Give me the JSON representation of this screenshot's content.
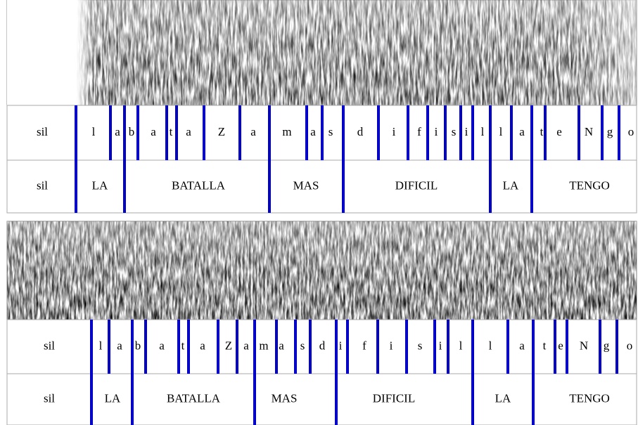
{
  "panels": [
    {
      "phonemes": [
        "sil",
        "l",
        "a",
        "b",
        "a",
        "t",
        "a",
        "Z",
        "a",
        "m",
        "a",
        "s",
        "d",
        "i",
        "f",
        "i",
        "s",
        "i",
        "l",
        "l",
        "a",
        "t",
        "e",
        "N",
        "g",
        "o"
      ],
      "words": [
        "sil",
        "LA",
        "BATALLA",
        "MAS",
        "DIFICIL",
        "LA",
        "TENGO"
      ]
    },
    {
      "phonemes": [
        "sil",
        "l",
        "a",
        "b",
        "a",
        "t",
        "a",
        "Z",
        "a",
        "m",
        "a",
        "s",
        "d",
        "i",
        "f",
        "i",
        "s",
        "i",
        "l",
        "l",
        "a",
        "t",
        "e",
        "N",
        "g",
        "o"
      ],
      "words": [
        "sil",
        "LA",
        "BATALLA",
        "MAS",
        "DIFICIL",
        "LA",
        "TENGO"
      ]
    }
  ]
}
